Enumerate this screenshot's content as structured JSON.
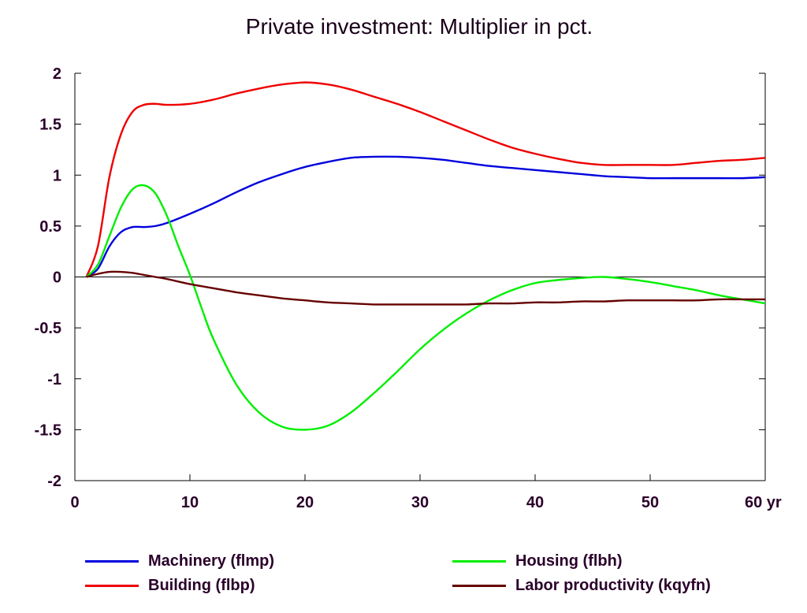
{
  "title": "Private investment: Multiplier in pct.",
  "chart_data": {
    "type": "line",
    "title": "Private investment: Multiplier in pct.",
    "xlabel": "",
    "ylabel": "",
    "xlim": [
      0,
      60
    ],
    "ylim": [
      -2,
      2
    ],
    "x_ticks": [
      "0",
      "10",
      "20",
      "30",
      "40",
      "50",
      "60 yr"
    ],
    "y_ticks": [
      "2",
      "1.5",
      "1",
      "0.5",
      "0",
      "-0.5",
      "-1",
      "-1.5",
      "-2"
    ],
    "grid": false,
    "zero_line": true,
    "legend_position": "bottom",
    "series": [
      {
        "name": "Machinery (flmp)",
        "color": "#0000dd",
        "x": [
          1,
          2,
          3,
          4,
          5,
          6,
          7,
          8,
          10,
          12,
          14,
          16,
          18,
          20,
          22,
          24,
          26,
          28,
          30,
          32,
          34,
          36,
          38,
          40,
          42,
          44,
          46,
          48,
          50,
          52,
          54,
          56,
          58,
          60
        ],
        "y": [
          0.0,
          0.08,
          0.3,
          0.44,
          0.49,
          0.49,
          0.5,
          0.53,
          0.62,
          0.72,
          0.83,
          0.93,
          1.01,
          1.08,
          1.13,
          1.17,
          1.18,
          1.18,
          1.17,
          1.15,
          1.12,
          1.09,
          1.07,
          1.05,
          1.03,
          1.01,
          0.99,
          0.98,
          0.97,
          0.97,
          0.97,
          0.97,
          0.97,
          0.98
        ]
      },
      {
        "name": "Building (flbp)",
        "color": "#ee0000",
        "x": [
          1,
          2,
          3,
          4,
          5,
          6,
          7,
          8,
          10,
          12,
          14,
          16,
          18,
          20,
          22,
          24,
          26,
          28,
          30,
          32,
          34,
          36,
          38,
          40,
          42,
          44,
          46,
          48,
          50,
          52,
          54,
          56,
          58,
          60
        ],
        "y": [
          0.0,
          0.3,
          0.98,
          1.4,
          1.62,
          1.69,
          1.7,
          1.69,
          1.7,
          1.74,
          1.8,
          1.85,
          1.89,
          1.91,
          1.89,
          1.84,
          1.77,
          1.7,
          1.62,
          1.53,
          1.44,
          1.35,
          1.27,
          1.21,
          1.16,
          1.12,
          1.1,
          1.1,
          1.1,
          1.1,
          1.12,
          1.14,
          1.15,
          1.17
        ]
      },
      {
        "name": "Housing (flbh)",
        "color": "#00ee00",
        "x": [
          1,
          2,
          3,
          4,
          5,
          6,
          7,
          8,
          9,
          10,
          11,
          12,
          14,
          16,
          18,
          20,
          22,
          24,
          26,
          28,
          30,
          32,
          34,
          36,
          38,
          40,
          42,
          44,
          46,
          48,
          50,
          52,
          54,
          56,
          58,
          60
        ],
        "y": [
          0.0,
          0.12,
          0.4,
          0.68,
          0.86,
          0.9,
          0.82,
          0.6,
          0.3,
          0.02,
          -0.3,
          -0.6,
          -1.05,
          -1.33,
          -1.47,
          -1.5,
          -1.46,
          -1.33,
          -1.14,
          -0.93,
          -0.71,
          -0.52,
          -0.36,
          -0.23,
          -0.13,
          -0.06,
          -0.03,
          -0.01,
          0.0,
          -0.02,
          -0.05,
          -0.09,
          -0.13,
          -0.18,
          -0.22,
          -0.26
        ]
      },
      {
        "name": "Labor productivity (kqyfn)",
        "color": "#660000",
        "x": [
          1,
          2,
          3,
          4,
          5,
          6,
          7,
          8,
          10,
          12,
          14,
          16,
          18,
          20,
          22,
          24,
          26,
          28,
          30,
          32,
          34,
          36,
          38,
          40,
          42,
          44,
          46,
          48,
          50,
          52,
          54,
          56,
          58,
          60
        ],
        "y": [
          0.0,
          0.03,
          0.05,
          0.05,
          0.04,
          0.02,
          0.0,
          -0.02,
          -0.07,
          -0.11,
          -0.15,
          -0.18,
          -0.21,
          -0.23,
          -0.25,
          -0.26,
          -0.27,
          -0.27,
          -0.27,
          -0.27,
          -0.27,
          -0.26,
          -0.26,
          -0.25,
          -0.25,
          -0.24,
          -0.24,
          -0.23,
          -0.23,
          -0.23,
          -0.23,
          -0.22,
          -0.22,
          -0.22
        ]
      }
    ]
  },
  "legend": [
    {
      "label": "Machinery (flmp)",
      "color": "#0000dd"
    },
    {
      "label": "Housing (flbh)",
      "color": "#00ee00"
    },
    {
      "label": "Building (flbp)",
      "color": "#ee0000"
    },
    {
      "label": "Labor productivity (kqyfn)",
      "color": "#660000"
    }
  ]
}
